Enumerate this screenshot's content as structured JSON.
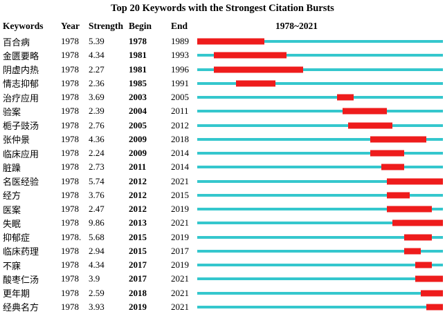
{
  "title": "Top 20 Keywords with the Strongest Citation Bursts",
  "header": {
    "keywords": "Keywords",
    "year": "Year",
    "strength": "Strength",
    "begin": "Begin",
    "end": "End",
    "timeline": "1978~2021"
  },
  "colors": {
    "track": "#35C7CD",
    "burst": "#EE1C1C"
  },
  "chart_data": {
    "type": "table",
    "title": "Top 20 Keywords with the Strongest Citation Bursts",
    "columns": [
      "Keywords",
      "Year",
      "Strength",
      "Begin",
      "End"
    ],
    "timeline": {
      "start": 1978,
      "end": 2021,
      "label": "1978~2021"
    },
    "rows": [
      {
        "keyword": "百合病",
        "year": "1978",
        "strength": "5.39",
        "begin": 1978,
        "end": 1989
      },
      {
        "keyword": "金匮要略",
        "year": "1978",
        "strength": "4.34",
        "begin": 1981,
        "end": 1993
      },
      {
        "keyword": "阴虚内热",
        "year": "1978",
        "strength": "2.27",
        "begin": 1981,
        "end": 1996
      },
      {
        "keyword": "情志抑郁",
        "year": "1978",
        "strength": "2.36",
        "begin": 1985,
        "end": 1991
      },
      {
        "keyword": "治疗应用",
        "year": "1978",
        "strength": "3.69",
        "begin": 2003,
        "end": 2005
      },
      {
        "keyword": "验案",
        "year": "1978",
        "strength": "2.39",
        "begin": 2004,
        "end": 2011
      },
      {
        "keyword": "栀子豉汤",
        "year": "1978",
        "strength": "2.76",
        "begin": 2005,
        "end": 2012
      },
      {
        "keyword": "张仲景",
        "year": "1978",
        "strength": "4.36",
        "begin": 2009,
        "end": 2018
      },
      {
        "keyword": "临床应用",
        "year": "1978",
        "strength": "2.24",
        "begin": 2009,
        "end": 2014
      },
      {
        "keyword": "脏躁",
        "year": "1978",
        "strength": "2.73",
        "begin": 2011,
        "end": 2014
      },
      {
        "keyword": "名医经验",
        "year": "1978",
        "strength": "5.74",
        "begin": 2012,
        "end": 2021
      },
      {
        "keyword": "经方",
        "year": "1978",
        "strength": "3.76",
        "begin": 2012,
        "end": 2015
      },
      {
        "keyword": "医案",
        "year": "1978",
        "strength": "2.47",
        "begin": 2012,
        "end": 2019
      },
      {
        "keyword": "失眠",
        "year": "1978",
        "strength": "9.86",
        "begin": 2013,
        "end": 2021
      },
      {
        "keyword": "抑郁症",
        "year": "1978.",
        "strength": "5.68",
        "begin": 2015,
        "end": 2019
      },
      {
        "keyword": "临床药理",
        "year": "1978",
        "strength": "2.94",
        "begin": 2015,
        "end": 2017
      },
      {
        "keyword": "不寐",
        "year": "1978",
        "strength": "4.34",
        "begin": 2017,
        "end": 2019
      },
      {
        "keyword": "酸枣仁汤",
        "year": "1978",
        "strength": "3.9",
        "begin": 2017,
        "end": 2021
      },
      {
        "keyword": "更年期",
        "year": "1978",
        "strength": "2.59",
        "begin": 2018,
        "end": 2021
      },
      {
        "keyword": "经典名方",
        "year": "1978",
        "strength": "3.93",
        "begin": 2019,
        "end": 2021
      }
    ]
  }
}
